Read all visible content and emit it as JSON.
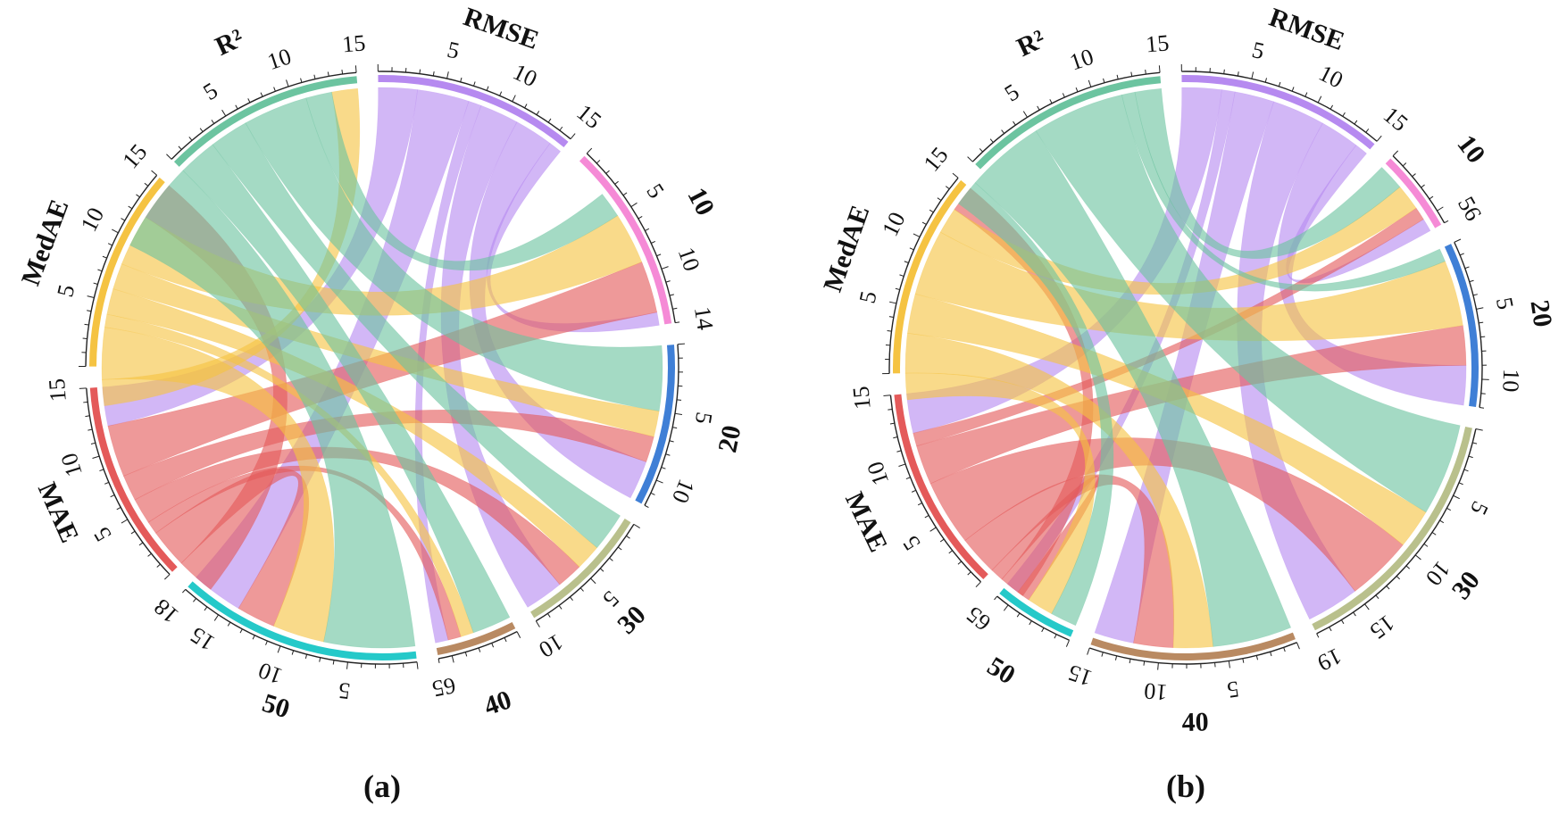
{
  "panels": [
    {
      "caption": "(a)",
      "segments": [
        {
          "key": "rmse",
          "label": "RMSE",
          "color": "#b68af0",
          "max": 15,
          "ticks": [
            "5",
            "10",
            "15"
          ]
        },
        {
          "key": "d10",
          "label": "10",
          "color": "#f58ad6",
          "max": 14,
          "ticks": [
            "5",
            "10",
            "14"
          ]
        },
        {
          "key": "d20",
          "label": "20",
          "color": "#3f7fd6",
          "max": 12,
          "ticks": [
            "5",
            "10"
          ]
        },
        {
          "key": "d30",
          "label": "30",
          "color": "#b9c08c",
          "max": 10,
          "ticks": [
            "5",
            "10"
          ]
        },
        {
          "key": "d40",
          "label": "40",
          "color": "#b98a62",
          "max": 6,
          "ticks": [
            "65"
          ]
        },
        {
          "key": "d50",
          "label": "50",
          "color": "#25c9c9",
          "max": 18,
          "ticks": [
            "5",
            "10",
            "15",
            "18"
          ]
        },
        {
          "key": "mae",
          "label": "MAE",
          "color": "#e45a5a",
          "max": 15,
          "ticks": [
            "5",
            "10",
            "15"
          ]
        },
        {
          "key": "medae",
          "label": "MedAE",
          "color": "#f5c342",
          "max": 15,
          "ticks": [
            "5",
            "10",
            "15"
          ]
        },
        {
          "key": "r2",
          "label": "R²",
          "color": "#6cc4a0",
          "max": 15,
          "ticks": [
            "5",
            "10",
            "15"
          ]
        }
      ],
      "ribbon_colors": {
        "rmse": "#b68af0",
        "mae": "#e45a5a",
        "medae": "#f5c342",
        "r2": "#6cc4a0"
      },
      "flows": [
        [
          "rmse",
          "d10",
          1
        ],
        [
          "rmse",
          "d20",
          3
        ],
        [
          "rmse",
          "d30",
          3
        ],
        [
          "rmse",
          "d40",
          1
        ],
        [
          "rmse",
          "d50",
          4
        ],
        [
          "rmse",
          "mae",
          3
        ],
        [
          "mae",
          "d10",
          4
        ],
        [
          "mae",
          "d20",
          2
        ],
        [
          "mae",
          "d30",
          2
        ],
        [
          "mae",
          "d40",
          1
        ],
        [
          "mae",
          "d50",
          3
        ],
        [
          "mae",
          "medae",
          3
        ],
        [
          "medae",
          "d10",
          4
        ],
        [
          "medae",
          "d20",
          2
        ],
        [
          "medae",
          "d30",
          2
        ],
        [
          "medae",
          "d40",
          1
        ],
        [
          "medae",
          "d50",
          4
        ],
        [
          "medae",
          "r2",
          2
        ],
        [
          "r2",
          "d10",
          2
        ],
        [
          "r2",
          "d20",
          5
        ],
        [
          "r2",
          "d30",
          3
        ],
        [
          "r2",
          "d40",
          3
        ],
        [
          "r2",
          "d50",
          7
        ]
      ]
    },
    {
      "caption": "(b)",
      "segments": [
        {
          "key": "rmse",
          "label": "RMSE",
          "color": "#b68af0",
          "max": 15,
          "ticks": [
            "5",
            "10",
            "15"
          ]
        },
        {
          "key": "d10",
          "label": "10",
          "color": "#f58ad6",
          "max": 6,
          "ticks": [
            "56"
          ]
        },
        {
          "key": "d20",
          "label": "20",
          "color": "#3f7fd6",
          "max": 12,
          "ticks": [
            "5",
            "10"
          ]
        },
        {
          "key": "d30",
          "label": "30",
          "color": "#b9c08c",
          "max": 19,
          "ticks": [
            "5",
            "10",
            "15",
            "19"
          ]
        },
        {
          "key": "d40",
          "label": "40",
          "color": "#b98a62",
          "max": 15,
          "ticks": [
            "5",
            "10",
            "15"
          ]
        },
        {
          "key": "d50",
          "label": "50",
          "color": "#25c9c9",
          "max": 6,
          "ticks": [
            "65"
          ]
        },
        {
          "key": "mae",
          "label": "MAE",
          "color": "#e45a5a",
          "max": 15,
          "ticks": [
            "5",
            "10",
            "15"
          ]
        },
        {
          "key": "medae",
          "label": "MedAE",
          "color": "#f5c342",
          "max": 15,
          "ticks": [
            "5",
            "10",
            "15"
          ]
        },
        {
          "key": "r2",
          "label": "R²",
          "color": "#6cc4a0",
          "max": 15,
          "ticks": [
            "5",
            "10",
            "15"
          ]
        }
      ],
      "ribbon_colors": {
        "rmse": "#b68af0",
        "mae": "#e45a5a",
        "medae": "#f5c342",
        "r2": "#6cc4a0"
      },
      "flows": [
        [
          "rmse",
          "d10",
          1
        ],
        [
          "rmse",
          "d20",
          3
        ],
        [
          "rmse",
          "d30",
          4
        ],
        [
          "rmse",
          "d40",
          3
        ],
        [
          "rmse",
          "d50",
          1
        ],
        [
          "rmse",
          "mae",
          3
        ],
        [
          "mae",
          "d10",
          1
        ],
        [
          "mae",
          "d20",
          3
        ],
        [
          "mae",
          "d30",
          5
        ],
        [
          "mae",
          "d40",
          3
        ],
        [
          "mae",
          "d50",
          1
        ],
        [
          "mae",
          "medae",
          2
        ],
        [
          "medae",
          "d10",
          2
        ],
        [
          "medae",
          "d20",
          5
        ],
        [
          "medae",
          "d30",
          3
        ],
        [
          "medae",
          "d40",
          3
        ],
        [
          "medae",
          "d50",
          2
        ],
        [
          "r2",
          "d10",
          2
        ],
        [
          "r2",
          "d20",
          1
        ],
        [
          "r2",
          "d30",
          7
        ],
        [
          "r2",
          "d40",
          6
        ],
        [
          "r2",
          "d50",
          2
        ]
      ]
    }
  ]
}
